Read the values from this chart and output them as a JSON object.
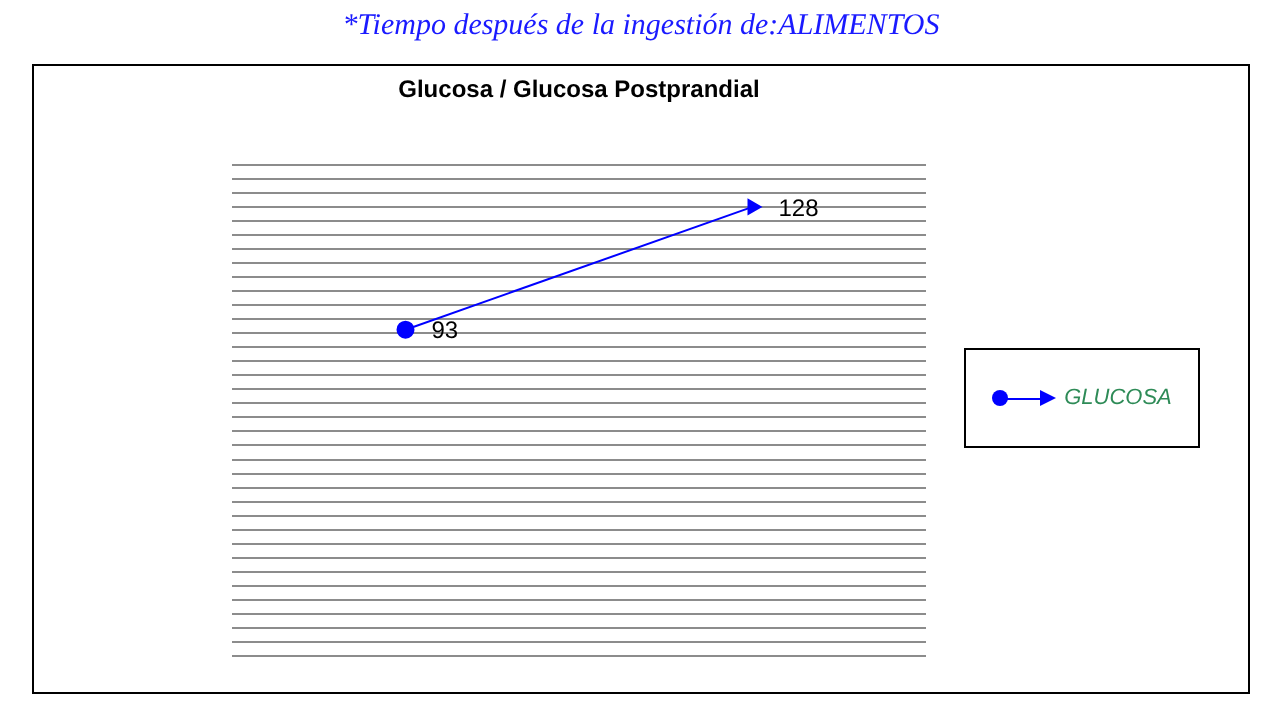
{
  "chart_data": {
    "type": "line",
    "title": "Glucosa / Glucosa Postprandial",
    "annotations": [
      "*Tiempo después de la ingestión de:ALIMENTOS"
    ],
    "categories": [
      null,
      null
    ],
    "series": [
      {
        "name": "GLUCOSA",
        "color": "#0000ff",
        "values": [
          93,
          128
        ]
      }
    ],
    "ylim": [
      0,
      140
    ],
    "yticks": [
      {
        "value": 0,
        "label": null
      },
      {
        "value": 4,
        "label": null
      },
      {
        "value": 8,
        "label": null
      },
      {
        "value": 12,
        "label": null
      },
      {
        "value": 16,
        "label": null
      },
      {
        "value": 20,
        "label": null
      },
      {
        "value": 24,
        "label": null
      },
      {
        "value": 28,
        "label": null
      },
      {
        "value": 32,
        "label": null
      },
      {
        "value": 36,
        "label": null
      },
      {
        "value": 40,
        "label": null
      },
      {
        "value": 44,
        "label": null
      },
      {
        "value": 48,
        "label": null
      },
      {
        "value": 52,
        "label": null
      },
      {
        "value": 56,
        "label": null
      },
      {
        "value": 60,
        "label": null
      },
      {
        "value": 64,
        "label": null
      },
      {
        "value": 68,
        "label": null
      },
      {
        "value": 72,
        "label": null
      },
      {
        "value": 76,
        "label": null
      },
      {
        "value": 80,
        "label": null
      },
      {
        "value": 84,
        "label": null
      },
      {
        "value": 88,
        "label": null
      },
      {
        "value": 92,
        "label": null
      },
      {
        "value": 96,
        "label": null
      },
      {
        "value": 100,
        "label": null
      },
      {
        "value": 104,
        "label": null
      },
      {
        "value": 108,
        "label": null
      },
      {
        "value": 112,
        "label": null
      },
      {
        "value": 116,
        "label": null
      },
      {
        "value": 120,
        "label": null
      },
      {
        "value": 124,
        "label": null
      },
      {
        "value": 128,
        "label": null
      },
      {
        "value": 132,
        "label": null
      },
      {
        "value": 136,
        "label": null
      },
      {
        "value": 140,
        "label": null
      }
    ],
    "grid": "y",
    "legend": "right",
    "tick_labels": false,
    "marker": "circle",
    "line_style": "solid",
    "data_labels": true
  }
}
